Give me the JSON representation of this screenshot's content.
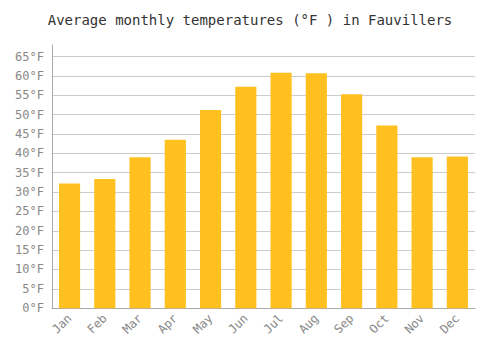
{
  "chart_data": {
    "type": "bar",
    "title": "Average monthly temperatures (°F ) in Fauvillers",
    "categories": [
      "Jan",
      "Feb",
      "Mar",
      "Apr",
      "May",
      "Jun",
      "Jul",
      "Aug",
      "Sep",
      "Oct",
      "Nov",
      "Dec"
    ],
    "values": [
      32.2,
      33.4,
      39.0,
      43.5,
      51.2,
      57.2,
      60.8,
      60.7,
      55.3,
      47.2,
      39.0,
      39.2
    ],
    "color": "#FFC020",
    "ylim": [
      0,
      68
    ],
    "yticks": [
      {
        "value": 0,
        "label": "0°F"
      },
      {
        "value": 5,
        "label": "5°F"
      },
      {
        "value": 10,
        "label": "10°F"
      },
      {
        "value": 15,
        "label": "15°F"
      },
      {
        "value": 20,
        "label": "20°F"
      },
      {
        "value": 25,
        "label": "25°F"
      },
      {
        "value": 30,
        "label": "30°F"
      },
      {
        "value": 35,
        "label": "35°F"
      },
      {
        "value": 40,
        "label": "40°F"
      },
      {
        "value": 45,
        "label": "45°F"
      },
      {
        "value": 50,
        "label": "50°F"
      },
      {
        "value": 55,
        "label": "55°F"
      },
      {
        "value": 60,
        "label": "60°F"
      },
      {
        "value": 65,
        "label": "65°F"
      }
    ],
    "grid": true
  }
}
